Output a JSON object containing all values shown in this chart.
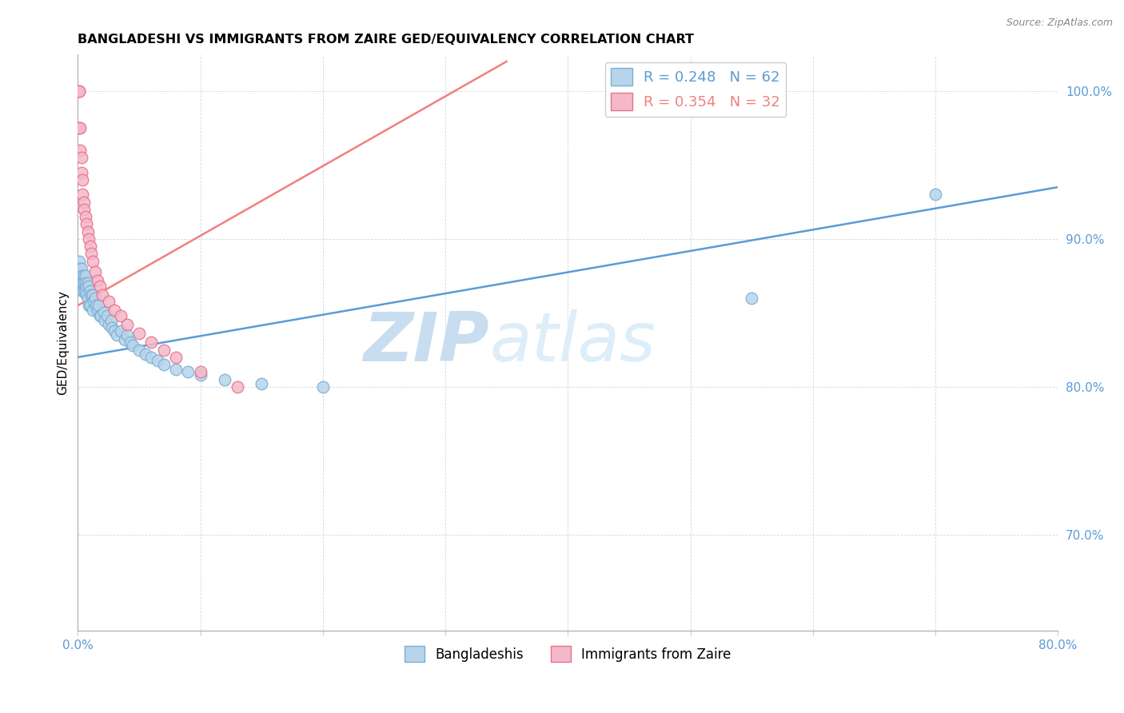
{
  "title": "BANGLADESHI VS IMMIGRANTS FROM ZAIRE GED/EQUIVALENCY CORRELATION CHART",
  "source": "Source: ZipAtlas.com",
  "ylabel": "GED/Equivalency",
  "ytick_positions": [
    0.7,
    0.8,
    0.9,
    1.0
  ],
  "ytick_labels": [
    "70.0%",
    "80.0%",
    "90.0%",
    "100.0%"
  ],
  "xlim": [
    0.0,
    0.8
  ],
  "ylim": [
    0.635,
    1.025
  ],
  "blue_R": 0.248,
  "blue_N": 62,
  "pink_R": 0.354,
  "pink_N": 32,
  "blue_line_color": "#5b9bd5",
  "pink_line_color": "#f08080",
  "blue_scatter_color": "#b8d4ea",
  "pink_scatter_color": "#f4b8c8",
  "blue_scatter_edge": "#7aafd4",
  "pink_scatter_edge": "#e87090",
  "watermark_zip": "ZIP",
  "watermark_atlas": "atlas",
  "watermark_color": "#ddeeff",
  "blue_x": [
    0.001,
    0.001,
    0.001,
    0.001,
    0.002,
    0.002,
    0.002,
    0.003,
    0.003,
    0.003,
    0.004,
    0.004,
    0.005,
    0.005,
    0.005,
    0.006,
    0.006,
    0.006,
    0.007,
    0.007,
    0.008,
    0.008,
    0.009,
    0.009,
    0.01,
    0.01,
    0.011,
    0.012,
    0.012,
    0.013,
    0.014,
    0.015,
    0.016,
    0.017,
    0.018,
    0.019,
    0.021,
    0.022,
    0.024,
    0.025,
    0.027,
    0.028,
    0.03,
    0.032,
    0.035,
    0.038,
    0.04,
    0.043,
    0.045,
    0.05,
    0.055,
    0.06,
    0.065,
    0.07,
    0.08,
    0.09,
    0.1,
    0.12,
    0.15,
    0.2,
    0.55,
    0.7
  ],
  "blue_y": [
    0.875,
    0.88,
    0.885,
    0.875,
    0.88,
    0.875,
    0.87,
    0.88,
    0.875,
    0.87,
    0.87,
    0.865,
    0.875,
    0.87,
    0.865,
    0.875,
    0.87,
    0.865,
    0.868,
    0.862,
    0.87,
    0.86,
    0.868,
    0.855,
    0.865,
    0.855,
    0.862,
    0.862,
    0.852,
    0.858,
    0.86,
    0.855,
    0.852,
    0.855,
    0.848,
    0.848,
    0.85,
    0.845,
    0.848,
    0.842,
    0.845,
    0.84,
    0.838,
    0.835,
    0.838,
    0.832,
    0.835,
    0.83,
    0.828,
    0.825,
    0.822,
    0.82,
    0.818,
    0.815,
    0.812,
    0.81,
    0.808,
    0.805,
    0.802,
    0.8,
    0.86,
    0.93
  ],
  "pink_x": [
    0.001,
    0.001,
    0.001,
    0.002,
    0.002,
    0.003,
    0.003,
    0.004,
    0.004,
    0.005,
    0.005,
    0.006,
    0.007,
    0.008,
    0.009,
    0.01,
    0.011,
    0.012,
    0.014,
    0.016,
    0.018,
    0.02,
    0.025,
    0.03,
    0.035,
    0.04,
    0.05,
    0.06,
    0.07,
    0.08,
    0.1,
    0.13
  ],
  "pink_y": [
    1.0,
    1.0,
    0.975,
    0.975,
    0.96,
    0.955,
    0.945,
    0.94,
    0.93,
    0.925,
    0.92,
    0.915,
    0.91,
    0.905,
    0.9,
    0.895,
    0.89,
    0.885,
    0.878,
    0.872,
    0.868,
    0.862,
    0.858,
    0.852,
    0.848,
    0.842,
    0.836,
    0.83,
    0.825,
    0.82,
    0.81,
    0.8
  ]
}
